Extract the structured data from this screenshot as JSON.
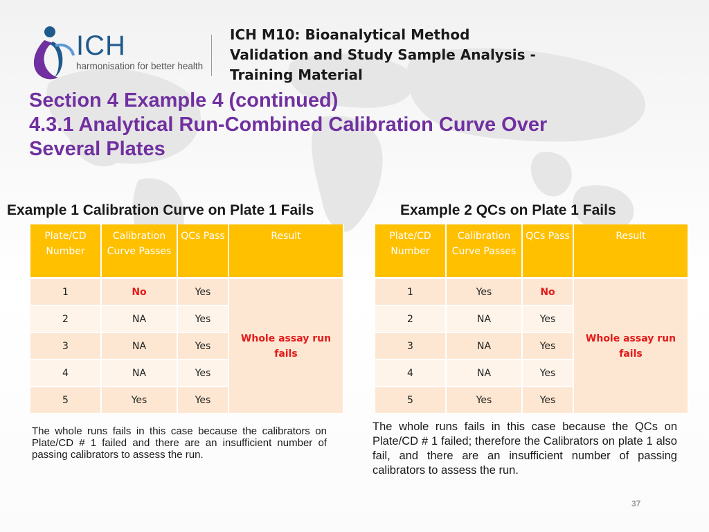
{
  "header": {
    "logo_text": "ICH",
    "logo_tagline": "harmonisation for better health",
    "doc_title": [
      "ICH M10: Bioanalytical Method",
      "Validation and Study Sample Analysis -",
      "Training Material"
    ]
  },
  "section_title": [
    "Section 4 Example 4 (continued)",
    "4.3.1 Analytical Run-Combined Calibration Curve Over",
    "Several Plates"
  ],
  "colors": {
    "title": "#7030a0",
    "table_header": "#ffc000",
    "row_odd": "#fde7d2",
    "row_even": "#fef4ea",
    "fail_text": "#e31b1b"
  },
  "example1": {
    "heading": "Example 1 Calibration Curve on Plate 1 Fails",
    "columns": [
      "Plate/CD Number",
      "Calibration Curve Passes",
      "QCs Pass",
      "Result"
    ],
    "rows": [
      {
        "plate": "1",
        "calibration": "No",
        "qcs": "Yes"
      },
      {
        "plate": "2",
        "calibration": "NA",
        "qcs": "Yes"
      },
      {
        "plate": "3",
        "calibration": "NA",
        "qcs": "Yes"
      },
      {
        "plate": "4",
        "calibration": "NA",
        "qcs": "Yes"
      },
      {
        "plate": "5",
        "calibration": "Yes",
        "qcs": "Yes"
      }
    ],
    "result": "Whole assay run fails",
    "note": "The whole runs fails in this case because the calibrators on Plate/CD # 1 failed and there are an insufficient number of passing calibrators  to assess the run."
  },
  "example2": {
    "heading": "Example 2 QCs on Plate 1 Fails",
    "columns": [
      "Plate/CD Number",
      "Calibration Curve Passes",
      "QCs Pass",
      "Result"
    ],
    "rows": [
      {
        "plate": "1",
        "calibration": "Yes",
        "qcs": "No"
      },
      {
        "plate": "2",
        "calibration": "NA",
        "qcs": "Yes"
      },
      {
        "plate": "3",
        "calibration": "NA",
        "qcs": "Yes"
      },
      {
        "plate": "4",
        "calibration": "NA",
        "qcs": "Yes"
      },
      {
        "plate": "5",
        "calibration": "Yes",
        "qcs": "Yes"
      }
    ],
    "result": "Whole assay run fails",
    "note": "The whole runs fails in this case because the QCs on Plate/CD # 1 failed; therefore the Calibrators on plate 1 also fail, and there are an insufficient number of passing calibrators  to assess the run."
  },
  "page_number": "37"
}
